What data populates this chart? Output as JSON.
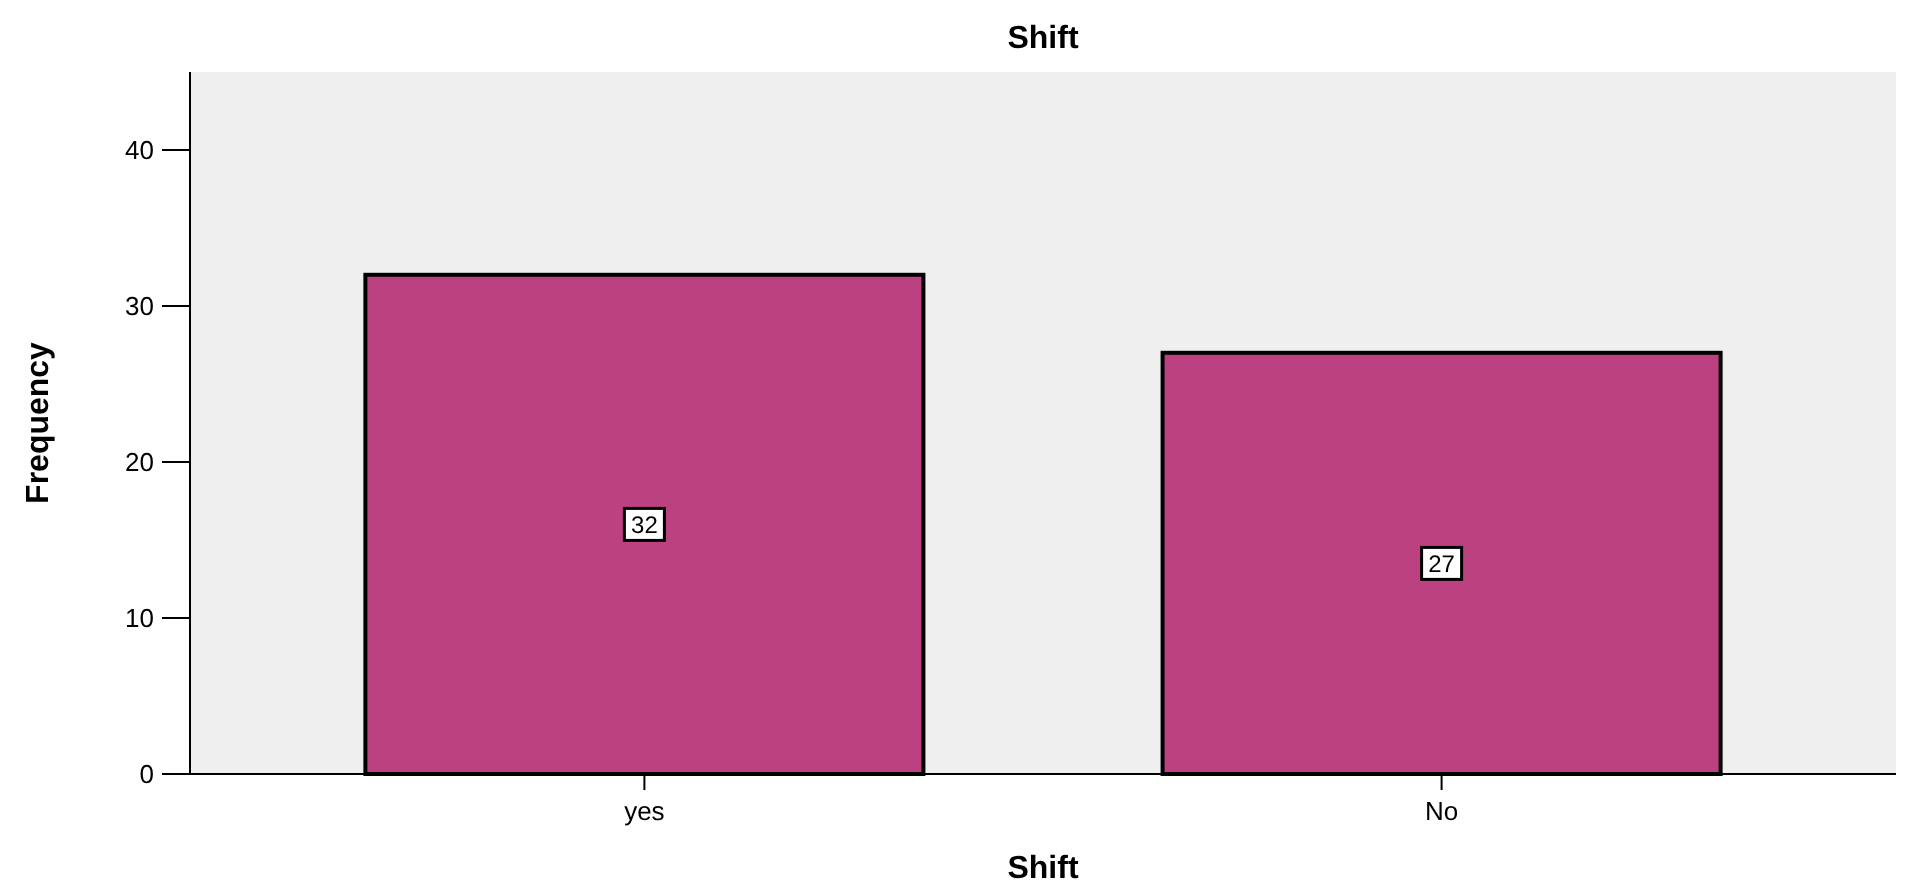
{
  "chart_data": {
    "type": "bar",
    "title": "Shift",
    "xlabel": "Shift",
    "ylabel": "Frequency",
    "categories": [
      "yes",
      "No"
    ],
    "values": [
      32,
      27
    ],
    "color": "#bb4180",
    "ylim": [
      0,
      45
    ],
    "yticks": [
      0,
      10,
      20,
      30,
      40
    ],
    "grid": false,
    "data_labels": true
  }
}
